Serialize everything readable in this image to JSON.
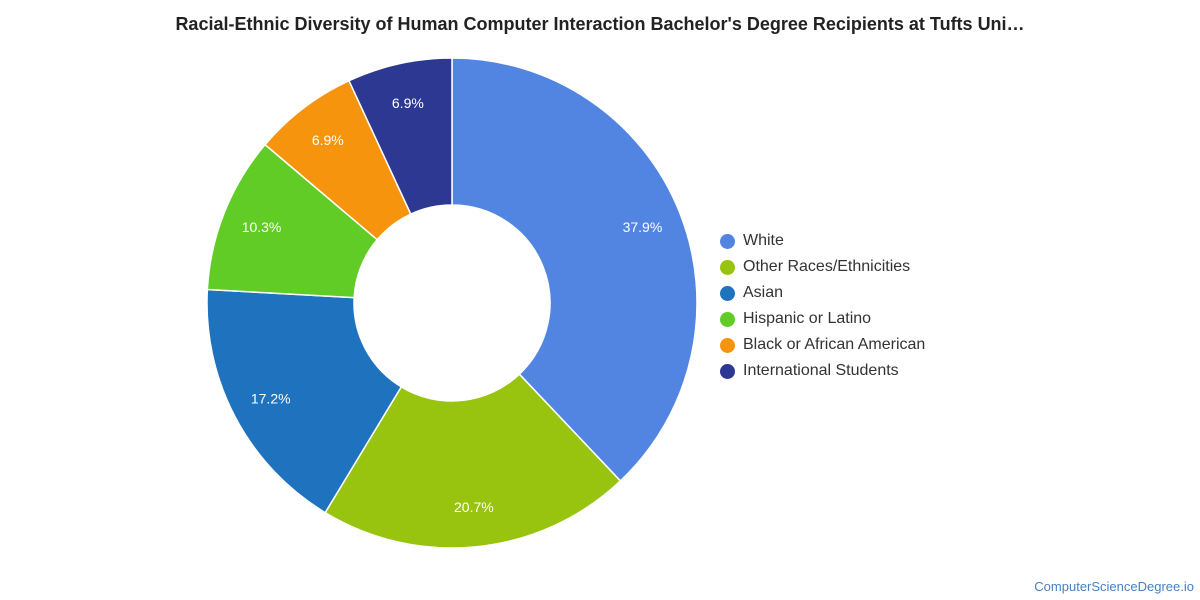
{
  "chart_data": {
    "type": "pie",
    "title": "Racial-Ethnic Diversity of Human Computer Interaction Bachelor's Degree Recipients at Tufts Uni…",
    "categories": [
      "White",
      "Other Races/Ethnicities",
      "Asian",
      "Hispanic or Latino",
      "Black or African American",
      "International Students"
    ],
    "values": [
      37.9,
      20.7,
      17.2,
      10.3,
      6.9,
      6.9
    ],
    "labels": [
      "37.9%",
      "20.7%",
      "17.2%",
      "10.3%",
      "6.9%",
      "6.9%"
    ],
    "colors": [
      "#5285e1",
      "#98c40f",
      "#1f72bd",
      "#60cc25",
      "#f7940d",
      "#2d3892"
    ],
    "hole": "donut",
    "legend_position": "right"
  },
  "watermark": "ComputerScienceDegree.io"
}
